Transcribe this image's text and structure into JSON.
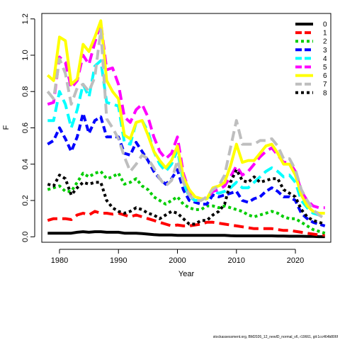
{
  "chart_data": {
    "type": "line",
    "xlabel": "Year",
    "ylabel": "F",
    "xlim": [
      1977,
      2026
    ],
    "ylim": [
      -0.03,
      1.23
    ],
    "xticks": [
      "1980",
      "1990",
      "2000",
      "2010",
      "2020"
    ],
    "yticks": [
      "0.0",
      "0.2",
      "0.4",
      "0.6",
      "0.8",
      "1.0",
      "1.2"
    ],
    "grid": false,
    "legend_position": "top-right",
    "x": [
      1978,
      1979,
      1980,
      1981,
      1982,
      1983,
      1984,
      1985,
      1986,
      1987,
      1988,
      1989,
      1990,
      1991,
      1992,
      1993,
      1994,
      1995,
      1996,
      1997,
      1998,
      1999,
      2000,
      2001,
      2002,
      2003,
      2004,
      2005,
      2006,
      2007,
      2008,
      2009,
      2010,
      2011,
      2012,
      2013,
      2014,
      2015,
      2016,
      2017,
      2018,
      2019,
      2020,
      2021,
      2022,
      2023,
      2024,
      2025
    ],
    "series": [
      {
        "name": "0",
        "color": "#000000",
        "dash": "solid",
        "values": [
          0.02,
          0.02,
          0.02,
          0.02,
          0.02,
          0.025,
          0.028,
          0.025,
          0.028,
          0.028,
          0.025,
          0.025,
          0.025,
          0.02,
          0.02,
          0.02,
          0.018,
          0.015,
          0.012,
          0.01,
          0.01,
          0.01,
          0.008,
          0.008,
          0.008,
          0.008,
          0.008,
          0.008,
          0.008,
          0.008,
          0.008,
          0.006,
          0.005,
          0.005,
          0.005,
          0.005,
          0.005,
          0.005,
          0.005,
          0.004,
          0.004,
          0.003,
          0.003,
          0.003,
          0.002,
          0.002,
          0.001,
          0.001
        ]
      },
      {
        "name": "1",
        "color": "#ff0000",
        "dash": "long",
        "values": [
          0.09,
          0.1,
          0.1,
          0.1,
          0.095,
          0.12,
          0.13,
          0.12,
          0.14,
          0.13,
          0.13,
          0.125,
          0.13,
          0.12,
          0.11,
          0.12,
          0.11,
          0.1,
          0.09,
          0.08,
          0.07,
          0.06,
          0.065,
          0.06,
          0.06,
          0.065,
          0.07,
          0.08,
          0.08,
          0.075,
          0.07,
          0.065,
          0.06,
          0.055,
          0.05,
          0.045,
          0.045,
          0.045,
          0.045,
          0.04,
          0.035,
          0.035,
          0.03,
          0.025,
          0.02,
          0.015,
          0.01,
          0.01
        ]
      },
      {
        "name": "2",
        "color": "#00cd00",
        "dash": "dot",
        "values": [
          0.26,
          0.27,
          0.28,
          0.25,
          0.25,
          0.3,
          0.35,
          0.33,
          0.35,
          0.36,
          0.32,
          0.33,
          0.35,
          0.29,
          0.3,
          0.32,
          0.28,
          0.26,
          0.22,
          0.2,
          0.18,
          0.2,
          0.22,
          0.18,
          0.16,
          0.15,
          0.15,
          0.17,
          0.17,
          0.16,
          0.17,
          0.16,
          0.15,
          0.14,
          0.12,
          0.11,
          0.12,
          0.13,
          0.14,
          0.13,
          0.11,
          0.1,
          0.1,
          0.08,
          0.06,
          0.04,
          0.03,
          0.02
        ]
      },
      {
        "name": "3",
        "color": "#0000ff",
        "dash": "dashed",
        "values": [
          0.51,
          0.53,
          0.6,
          0.54,
          0.47,
          0.55,
          0.68,
          0.57,
          0.64,
          0.66,
          0.55,
          0.55,
          0.55,
          0.46,
          0.45,
          0.52,
          0.47,
          0.42,
          0.36,
          0.32,
          0.29,
          0.32,
          0.37,
          0.26,
          0.2,
          0.19,
          0.18,
          0.18,
          0.23,
          0.22,
          0.23,
          0.24,
          0.25,
          0.2,
          0.19,
          0.21,
          0.22,
          0.25,
          0.27,
          0.25,
          0.22,
          0.22,
          0.2,
          0.13,
          0.1,
          0.08,
          0.07,
          0.06
        ]
      },
      {
        "name": "4",
        "color": "#00ffff",
        "dash": "long",
        "values": [
          0.64,
          0.64,
          0.8,
          0.73,
          0.6,
          0.7,
          0.84,
          0.77,
          0.94,
          0.97,
          0.74,
          0.73,
          0.72,
          0.52,
          0.51,
          0.63,
          0.64,
          0.58,
          0.47,
          0.4,
          0.36,
          0.4,
          0.48,
          0.3,
          0.22,
          0.2,
          0.2,
          0.21,
          0.25,
          0.24,
          0.25,
          0.27,
          0.3,
          0.27,
          0.27,
          0.3,
          0.33,
          0.36,
          0.38,
          0.36,
          0.33,
          0.34,
          0.3,
          0.2,
          0.16,
          0.13,
          0.12,
          0.12
        ]
      },
      {
        "name": "5",
        "color": "#ff00ff",
        "dash": "long",
        "values": [
          0.73,
          0.74,
          0.99,
          0.96,
          0.82,
          0.86,
          1.0,
          0.95,
          1.07,
          1.18,
          0.92,
          0.93,
          0.84,
          0.66,
          0.63,
          0.7,
          0.73,
          0.66,
          0.55,
          0.47,
          0.43,
          0.46,
          0.55,
          0.35,
          0.25,
          0.22,
          0.21,
          0.21,
          0.25,
          0.26,
          0.28,
          0.33,
          0.39,
          0.34,
          0.36,
          0.4,
          0.44,
          0.47,
          0.49,
          0.45,
          0.41,
          0.41,
          0.36,
          0.25,
          0.2,
          0.17,
          0.16,
          0.16
        ]
      },
      {
        "name": "6",
        "color": "#ffff00",
        "dash": "solid",
        "values": [
          0.89,
          0.86,
          1.1,
          1.08,
          0.84,
          0.87,
          1.06,
          1.02,
          1.1,
          1.19,
          0.86,
          0.8,
          0.76,
          0.56,
          0.54,
          0.63,
          0.64,
          0.56,
          0.47,
          0.42,
          0.38,
          0.42,
          0.5,
          0.33,
          0.26,
          0.22,
          0.21,
          0.21,
          0.27,
          0.28,
          0.3,
          0.39,
          0.51,
          0.41,
          0.42,
          0.42,
          0.46,
          0.5,
          0.51,
          0.46,
          0.4,
          0.4,
          0.34,
          0.23,
          0.17,
          0.14,
          0.13,
          0.13
        ]
      },
      {
        "name": "7",
        "color": "#bebebe",
        "dash": "long",
        "values": [
          0.8,
          0.76,
          0.98,
          0.9,
          0.73,
          0.82,
          0.84,
          0.8,
          0.88,
          1.14,
          0.65,
          0.6,
          0.54,
          0.44,
          0.36,
          0.4,
          0.45,
          0.43,
          0.38,
          0.32,
          0.28,
          0.31,
          0.42,
          0.3,
          0.23,
          0.2,
          0.2,
          0.22,
          0.26,
          0.28,
          0.34,
          0.49,
          0.64,
          0.51,
          0.51,
          0.51,
          0.53,
          0.53,
          0.54,
          0.5,
          0.43,
          0.43,
          0.37,
          0.26,
          0.2,
          0.15,
          0.12,
          0.1
        ]
      },
      {
        "name": "8",
        "color": "#000000",
        "dash": "dot",
        "values": [
          0.29,
          0.28,
          0.34,
          0.32,
          0.23,
          0.27,
          0.3,
          0.29,
          0.3,
          0.3,
          0.2,
          0.16,
          0.14,
          0.13,
          0.14,
          0.16,
          0.15,
          0.13,
          0.12,
          0.1,
          0.12,
          0.14,
          0.13,
          0.1,
          0.07,
          0.07,
          0.09,
          0.09,
          0.12,
          0.14,
          0.18,
          0.3,
          0.37,
          0.31,
          0.3,
          0.33,
          0.3,
          0.31,
          0.32,
          0.32,
          0.26,
          0.24,
          0.22,
          0.15,
          0.11,
          0.09,
          0.08,
          0.07
        ]
      }
    ]
  },
  "footer": "stockassessment.org, BM2026_12_newID_normal_v6, r19661, git:1cc464b806f"
}
